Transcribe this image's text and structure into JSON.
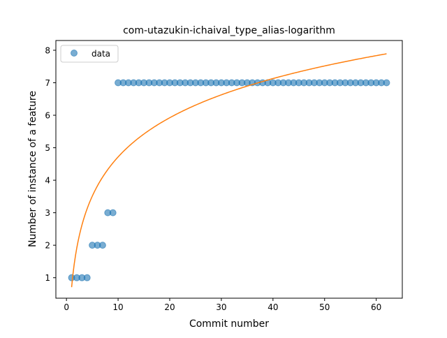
{
  "chart_data": {
    "type": "scatter",
    "title": "com-utazukin-ichaival_type_alias-logarithm",
    "xlabel": "Commit number",
    "ylabel": "Number of instance of a feature",
    "xlim": [
      -2.05,
      65.05
    ],
    "ylim": [
      0.37,
      8.3
    ],
    "xticks": [
      0,
      10,
      20,
      30,
      40,
      50,
      60
    ],
    "yticks": [
      1,
      2,
      3,
      4,
      5,
      6,
      7,
      8
    ],
    "grid": false,
    "legend": {
      "placement": "top-left",
      "entries": [
        "data"
      ]
    },
    "colors": {
      "data": "#1f77b4",
      "fit": "#ff7f0e"
    },
    "series": [
      {
        "name": "data",
        "kind": "points",
        "x": [
          1,
          2,
          3,
          4,
          5,
          6,
          7,
          8,
          9,
          10,
          11,
          12,
          13,
          14,
          15,
          16,
          17,
          18,
          19,
          20,
          21,
          22,
          23,
          24,
          25,
          26,
          27,
          28,
          29,
          30,
          31,
          32,
          33,
          34,
          35,
          36,
          37,
          38,
          39,
          40,
          41,
          42,
          43,
          44,
          45,
          46,
          47,
          48,
          49,
          50,
          51,
          52,
          53,
          54,
          55,
          56,
          57,
          58,
          59,
          60,
          61,
          62
        ],
        "y": [
          1,
          1,
          1,
          1,
          2,
          2,
          2,
          3,
          3,
          7,
          7,
          7,
          7,
          7,
          7,
          7,
          7,
          7,
          7,
          7,
          7,
          7,
          7,
          7,
          7,
          7,
          7,
          7,
          7,
          7,
          7,
          7,
          7,
          7,
          7,
          7,
          7,
          7,
          7,
          7,
          7,
          7,
          7,
          7,
          7,
          7,
          7,
          7,
          7,
          7,
          7,
          7,
          7,
          7,
          7,
          7,
          7,
          7,
          7,
          7,
          7,
          7
        ]
      },
      {
        "kind": "curve",
        "fit": "logarithmic",
        "a": 1.74,
        "b": 0.71,
        "x_range": [
          1,
          62
        ]
      }
    ]
  }
}
